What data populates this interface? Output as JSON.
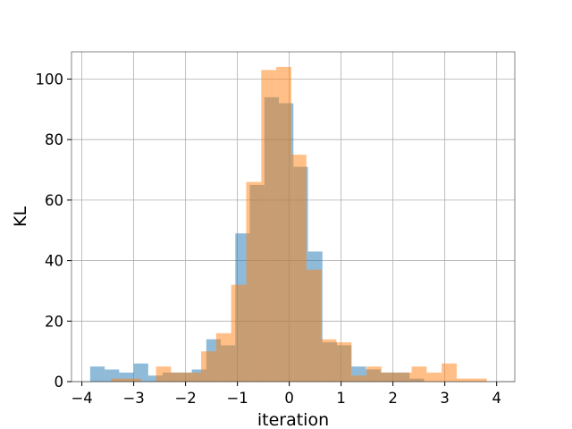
{
  "chart_data": {
    "type": "histogram",
    "title": "",
    "xlabel": "iteration",
    "ylabel": "KL",
    "xlim": [
      -4.2,
      4.35
    ],
    "ylim": [
      0,
      109
    ],
    "xticks": [
      -4,
      -3,
      -2,
      -1,
      0,
      1,
      2,
      3,
      4
    ],
    "yticks": [
      0,
      20,
      40,
      60,
      80,
      100
    ],
    "grid": true,
    "legend": "none",
    "series": [
      {
        "color": "#1f77b4",
        "alpha": 0.5,
        "bins": [
          {
            "x0": -3.84,
            "x1": -3.56,
            "count": 5
          },
          {
            "x0": -3.56,
            "x1": -3.28,
            "count": 4
          },
          {
            "x0": -3.28,
            "x1": -3.0,
            "count": 3
          },
          {
            "x0": -3.0,
            "x1": -2.72,
            "count": 6
          },
          {
            "x0": -2.72,
            "x1": -2.44,
            "count": 2
          },
          {
            "x0": -2.44,
            "x1": -2.16,
            "count": 3
          },
          {
            "x0": -2.16,
            "x1": -1.88,
            "count": 3
          },
          {
            "x0": -1.88,
            "x1": -1.6,
            "count": 4
          },
          {
            "x0": -1.6,
            "x1": -1.32,
            "count": 14
          },
          {
            "x0": -1.32,
            "x1": -1.04,
            "count": 12
          },
          {
            "x0": -1.04,
            "x1": -0.76,
            "count": 49
          },
          {
            "x0": -0.76,
            "x1": -0.48,
            "count": 65
          },
          {
            "x0": -0.48,
            "x1": -0.2,
            "count": 94
          },
          {
            "x0": -0.2,
            "x1": 0.08,
            "count": 92
          },
          {
            "x0": 0.08,
            "x1": 0.36,
            "count": 71
          },
          {
            "x0": 0.36,
            "x1": 0.64,
            "count": 43
          },
          {
            "x0": 0.64,
            "x1": 0.92,
            "count": 13
          },
          {
            "x0": 0.92,
            "x1": 1.2,
            "count": 12
          },
          {
            "x0": 1.2,
            "x1": 1.48,
            "count": 5
          },
          {
            "x0": 1.48,
            "x1": 1.76,
            "count": 4
          },
          {
            "x0": 1.76,
            "x1": 2.04,
            "count": 3
          },
          {
            "x0": 2.04,
            "x1": 2.32,
            "count": 3
          },
          {
            "x0": 2.32,
            "x1": 2.6,
            "count": 1
          }
        ]
      },
      {
        "color": "#ff7f0e",
        "alpha": 0.5,
        "bins": [
          {
            "x0": -3.44,
            "x1": -3.15,
            "count": 1
          },
          {
            "x0": -3.15,
            "x1": -2.86,
            "count": 1
          },
          {
            "x0": -2.57,
            "x1": -2.28,
            "count": 5
          },
          {
            "x0": -2.28,
            "x1": -1.99,
            "count": 3
          },
          {
            "x0": -1.99,
            "x1": -1.7,
            "count": 3
          },
          {
            "x0": -1.7,
            "x1": -1.41,
            "count": 10
          },
          {
            "x0": -1.41,
            "x1": -1.12,
            "count": 16
          },
          {
            "x0": -1.12,
            "x1": -0.83,
            "count": 32
          },
          {
            "x0": -0.83,
            "x1": -0.54,
            "count": 66
          },
          {
            "x0": -0.54,
            "x1": -0.25,
            "count": 103
          },
          {
            "x0": -0.25,
            "x1": 0.04,
            "count": 104
          },
          {
            "x0": 0.04,
            "x1": 0.33,
            "count": 75
          },
          {
            "x0": 0.33,
            "x1": 0.62,
            "count": 37
          },
          {
            "x0": 0.62,
            "x1": 0.91,
            "count": 14
          },
          {
            "x0": 0.91,
            "x1": 1.2,
            "count": 13
          },
          {
            "x0": 1.2,
            "x1": 1.49,
            "count": 2
          },
          {
            "x0": 1.49,
            "x1": 1.78,
            "count": 5
          },
          {
            "x0": 1.78,
            "x1": 2.07,
            "count": 3
          },
          {
            "x0": 2.07,
            "x1": 2.36,
            "count": 3
          },
          {
            "x0": 2.36,
            "x1": 2.65,
            "count": 5
          },
          {
            "x0": 2.65,
            "x1": 2.94,
            "count": 3
          },
          {
            "x0": 2.94,
            "x1": 3.23,
            "count": 6
          },
          {
            "x0": 3.23,
            "x1": 3.52,
            "count": 1
          },
          {
            "x0": 3.52,
            "x1": 3.81,
            "count": 1
          }
        ]
      }
    ]
  }
}
